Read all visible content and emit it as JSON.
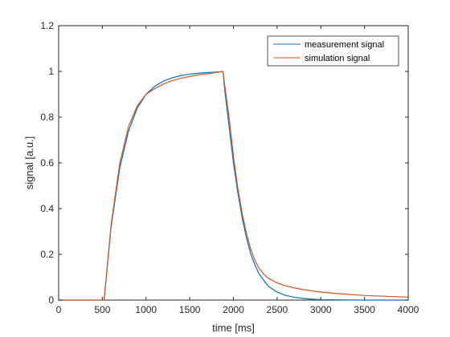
{
  "chart_data": {
    "type": "line",
    "xlabel": "time [ms]",
    "ylabel": "signal [a.u.]",
    "xlim": [
      0,
      4000
    ],
    "ylim": [
      0,
      1.2
    ],
    "xticks": [
      0,
      500,
      1000,
      1500,
      2000,
      2500,
      3000,
      3500,
      4000
    ],
    "xtick_labels": [
      "0",
      "500",
      "1000",
      "1500",
      "2000",
      "2500",
      "3000",
      "3500",
      "4000"
    ],
    "yticks": [
      0,
      0.2,
      0.4,
      0.6,
      0.8,
      1,
      1.2
    ],
    "ytick_labels": [
      "0",
      "0.2",
      "0.4",
      "0.6",
      "0.8",
      "1",
      "1.2"
    ],
    "grid": false,
    "legend_position": "top-right",
    "series": [
      {
        "name": "measurement signal",
        "color": "#0072BD",
        "x": [
          0,
          450,
          520,
          600,
          700,
          800,
          900,
          1000,
          1100,
          1200,
          1300,
          1400,
          1500,
          1600,
          1700,
          1800,
          1880,
          1900,
          1950,
          2000,
          2050,
          2100,
          2150,
          2200,
          2250,
          2300,
          2350,
          2400,
          2500,
          2600,
          2700,
          2800,
          2900,
          3000,
          3200,
          3500,
          4000
        ],
        "y": [
          0,
          0,
          0,
          0.32,
          0.58,
          0.74,
          0.84,
          0.9,
          0.935,
          0.958,
          0.972,
          0.982,
          0.988,
          0.992,
          0.995,
          0.997,
          1.0,
          0.92,
          0.76,
          0.6,
          0.47,
          0.36,
          0.27,
          0.2,
          0.15,
          0.11,
          0.085,
          0.06,
          0.035,
          0.02,
          0.012,
          0.007,
          0.004,
          0.002,
          0.001,
          0.0,
          0.0
        ]
      },
      {
        "name": "simulation signal",
        "color": "#D95319",
        "x": [
          0,
          450,
          520,
          600,
          700,
          800,
          900,
          1000,
          1100,
          1200,
          1300,
          1400,
          1500,
          1600,
          1700,
          1800,
          1880,
          1900,
          1950,
          2000,
          2050,
          2100,
          2150,
          2200,
          2250,
          2300,
          2350,
          2400,
          2500,
          2600,
          2700,
          2800,
          2900,
          3000,
          3200,
          3500,
          4000
        ],
        "y": [
          0,
          0,
          0,
          0.33,
          0.6,
          0.76,
          0.85,
          0.9,
          0.925,
          0.945,
          0.96,
          0.97,
          0.978,
          0.985,
          0.99,
          0.995,
          1.0,
          0.94,
          0.8,
          0.63,
          0.49,
          0.38,
          0.29,
          0.22,
          0.17,
          0.135,
          0.112,
          0.095,
          0.075,
          0.062,
          0.053,
          0.046,
          0.04,
          0.035,
          0.028,
          0.02,
          0.013
        ]
      }
    ]
  }
}
